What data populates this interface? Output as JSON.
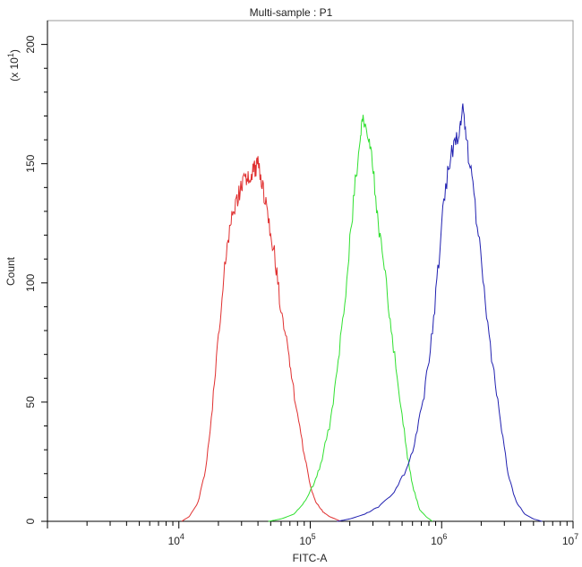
{
  "chart_data": {
    "type": "line",
    "title": "Multi-sample : P1",
    "xlabel": "FITC-A",
    "ylabel": "Count",
    "y_multiplier": "(x 10",
    "y_multiplier_exp": "1",
    "y_multiplier_close": ")",
    "x_scale": "log",
    "xlim": [
      1000,
      10000000
    ],
    "ylim": [
      0,
      210
    ],
    "x_ticks": [
      {
        "base": "10",
        "exp": "4",
        "value": 10000
      },
      {
        "base": "10",
        "exp": "5",
        "value": 100000
      },
      {
        "base": "10",
        "exp": "6",
        "value": 1000000
      },
      {
        "base": "10",
        "exp": "7",
        "value": 10000000
      }
    ],
    "y_ticks": [
      {
        "label": "0",
        "value": 0
      },
      {
        "label": "50",
        "value": 50
      },
      {
        "label": "100",
        "value": 100
      },
      {
        "label": "150",
        "value": 150
      },
      {
        "label": "200",
        "value": 200
      }
    ],
    "grid": false,
    "legend": "none",
    "series": [
      {
        "color": "#e03030",
        "x": [
          10500,
          12000,
          14000,
          16000,
          18000,
          20000,
          22000,
          24000,
          26000,
          28000,
          30000,
          32000,
          34000,
          36000,
          38000,
          40000,
          43000,
          46000,
          50000,
          55000,
          60000,
          66000,
          72000,
          80000,
          90000,
          100000,
          110000,
          125000,
          140000,
          155000,
          170000
        ],
        "y": [
          0,
          2,
          8,
          22,
          48,
          78,
          103,
          120,
          130,
          136,
          140,
          143,
          145,
          146,
          148,
          150,
          143,
          132,
          122,
          107,
          88,
          75,
          60,
          45,
          28,
          15,
          8,
          4,
          2,
          1,
          0
        ]
      },
      {
        "color": "#30e030",
        "x": [
          48000,
          60000,
          75000,
          90000,
          105000,
          120000,
          140000,
          160000,
          180000,
          200000,
          220000,
          240000,
          250000,
          265000,
          285000,
          310000,
          340000,
          380000,
          420000,
          480000,
          540000,
          600000,
          680000,
          760000,
          850000
        ],
        "y": [
          0,
          1,
          3,
          8,
          15,
          24,
          40,
          62,
          88,
          118,
          142,
          158,
          168,
          162,
          158,
          140,
          118,
          98,
          78,
          52,
          30,
          15,
          5,
          2,
          0
        ]
      },
      {
        "color": "#2020b0",
        "x": [
          160000,
          200000,
          260000,
          330000,
          420000,
          520000,
          620000,
          720000,
          820000,
          920000,
          1020000,
          1130000,
          1260000,
          1380000,
          1450000,
          1550000,
          1700000,
          1900000,
          2150000,
          2450000,
          2800000,
          3200000,
          3700000,
          4300000,
          5000000,
          5800000
        ],
        "y": [
          0,
          1,
          3,
          6,
          11,
          20,
          32,
          50,
          72,
          100,
          130,
          150,
          158,
          165,
          172,
          158,
          145,
          120,
          92,
          65,
          42,
          20,
          8,
          3,
          1,
          0
        ]
      }
    ]
  }
}
